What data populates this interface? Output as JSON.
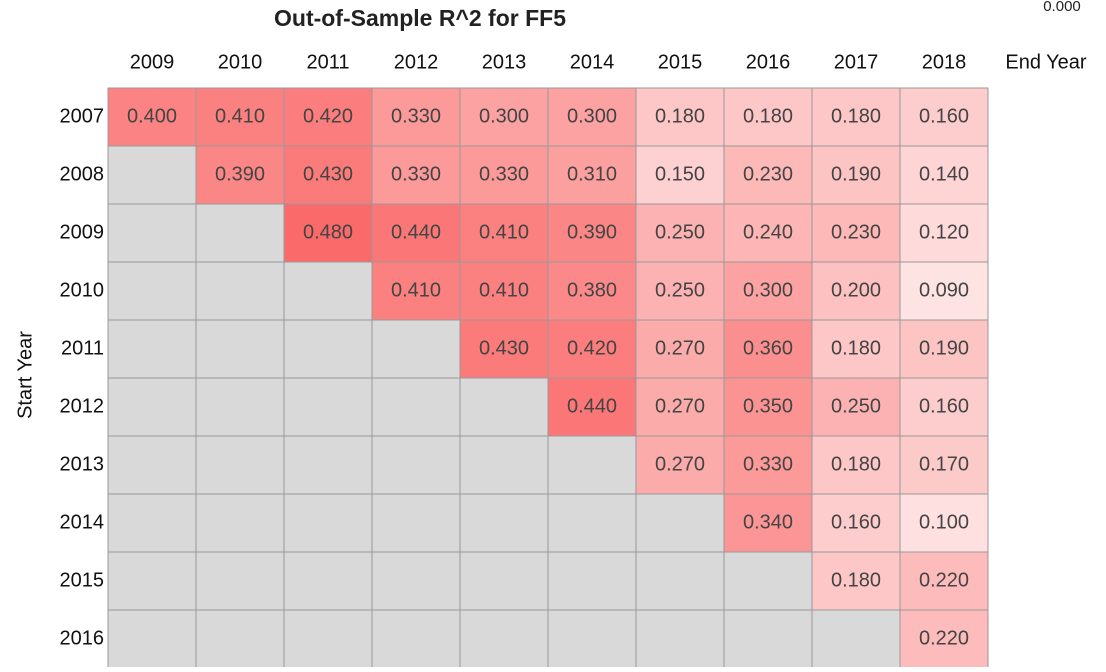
{
  "title": "Out-of-Sample R^2 for FF5",
  "corner_label": "0.000",
  "column_axis_label": "End Year",
  "row_axis_label": "Start Year",
  "table": {
    "columns": [
      "2009",
      "2010",
      "2011",
      "2012",
      "2013",
      "2014",
      "2015",
      "2016",
      "2017",
      "2018"
    ],
    "rows": [
      {
        "label": "2007",
        "cells": [
          "0.400",
          "0.410",
          "0.420",
          "0.330",
          "0.300",
          "0.300",
          "0.180",
          "0.180",
          "0.180",
          "0.160"
        ]
      },
      {
        "label": "2008",
        "cells": [
          null,
          "0.390",
          "0.430",
          "0.330",
          "0.330",
          "0.310",
          "0.150",
          "0.230",
          "0.190",
          "0.140"
        ]
      },
      {
        "label": "2009",
        "cells": [
          null,
          null,
          "0.480",
          "0.440",
          "0.410",
          "0.390",
          "0.250",
          "0.240",
          "0.230",
          "0.120"
        ]
      },
      {
        "label": "2010",
        "cells": [
          null,
          null,
          null,
          "0.410",
          "0.410",
          "0.380",
          "0.250",
          "0.300",
          "0.200",
          "0.090"
        ]
      },
      {
        "label": "2011",
        "cells": [
          null,
          null,
          null,
          null,
          "0.430",
          "0.420",
          "0.270",
          "0.360",
          "0.180",
          "0.190"
        ]
      },
      {
        "label": "2012",
        "cells": [
          null,
          null,
          null,
          null,
          null,
          "0.440",
          "0.270",
          "0.350",
          "0.250",
          "0.160"
        ]
      },
      {
        "label": "2013",
        "cells": [
          null,
          null,
          null,
          null,
          null,
          null,
          "0.270",
          "0.330",
          "0.180",
          "0.170"
        ]
      },
      {
        "label": "2014",
        "cells": [
          null,
          null,
          null,
          null,
          null,
          null,
          null,
          "0.340",
          "0.160",
          "0.100"
        ]
      },
      {
        "label": "2015",
        "cells": [
          null,
          null,
          null,
          null,
          null,
          null,
          null,
          null,
          "0.180",
          "0.220"
        ]
      },
      {
        "label": "2016",
        "cells": [
          null,
          null,
          null,
          null,
          null,
          null,
          null,
          null,
          null,
          "0.220"
        ]
      }
    ]
  }
}
